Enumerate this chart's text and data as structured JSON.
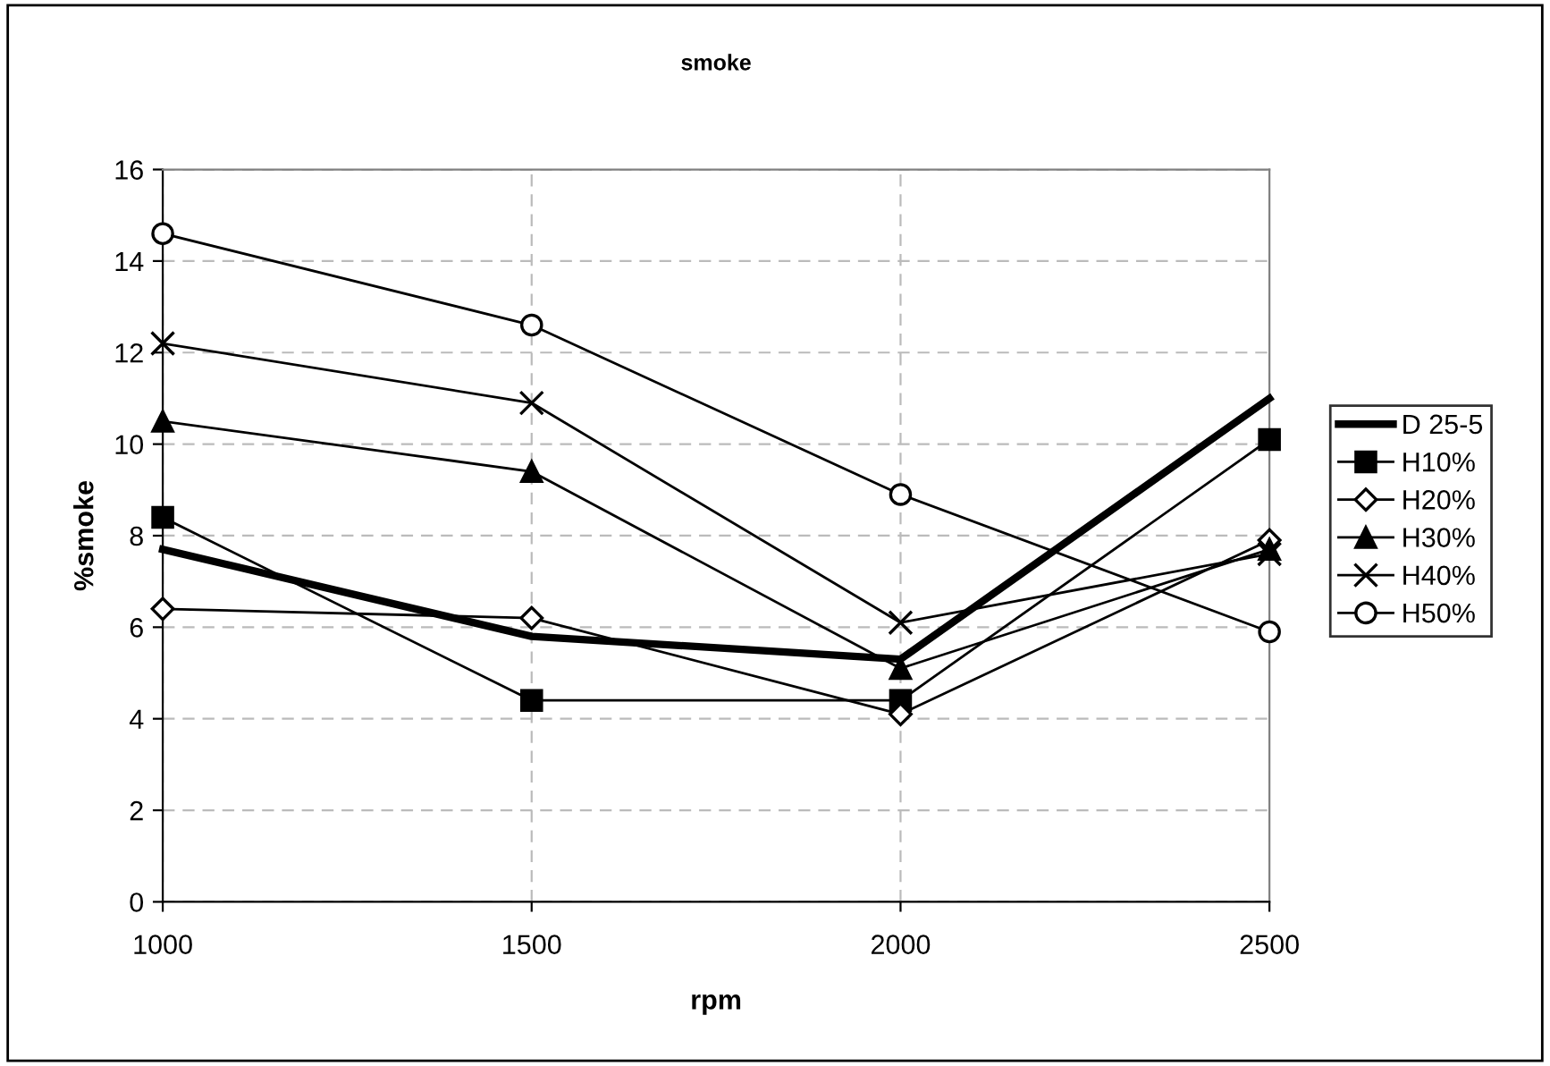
{
  "chart_data": {
    "type": "line",
    "title": "smoke",
    "xlabel": "rpm",
    "ylabel": "%smoke",
    "x": [
      1000,
      1500,
      2000,
      2500
    ],
    "series": [
      {
        "name": "D 25-5",
        "color": "#000000",
        "values": [
          7.7,
          5.8,
          5.3,
          11.0
        ],
        "marker": "none"
      },
      {
        "name": "H10%",
        "color": "#000000",
        "values": [
          8.4,
          4.4,
          4.4,
          10.1
        ],
        "marker": "square"
      },
      {
        "name": "H20%",
        "color": "#000000",
        "values": [
          6.4,
          6.2,
          4.1,
          7.9
        ],
        "marker": "diamond"
      },
      {
        "name": "H30%",
        "color": "#000000",
        "values": [
          10.5,
          9.4,
          5.1,
          7.7
        ],
        "marker": "triangle"
      },
      {
        "name": "H40%",
        "color": "#000000",
        "values": [
          12.2,
          10.9,
          6.1,
          7.6
        ],
        "marker": "cross"
      },
      {
        "name": "H50%",
        "color": "#000000",
        "values": [
          14.6,
          12.6,
          8.9,
          5.9
        ],
        "marker": "circle"
      }
    ],
    "xlim": [
      1000,
      2500
    ],
    "xticks": [
      1000,
      1500,
      2000,
      2500
    ],
    "ylim": [
      0,
      16
    ],
    "yticks": [
      0,
      2,
      4,
      6,
      8,
      10,
      12,
      14,
      16
    ],
    "grid": true,
    "legend": "right",
    "line_style": "solid"
  }
}
